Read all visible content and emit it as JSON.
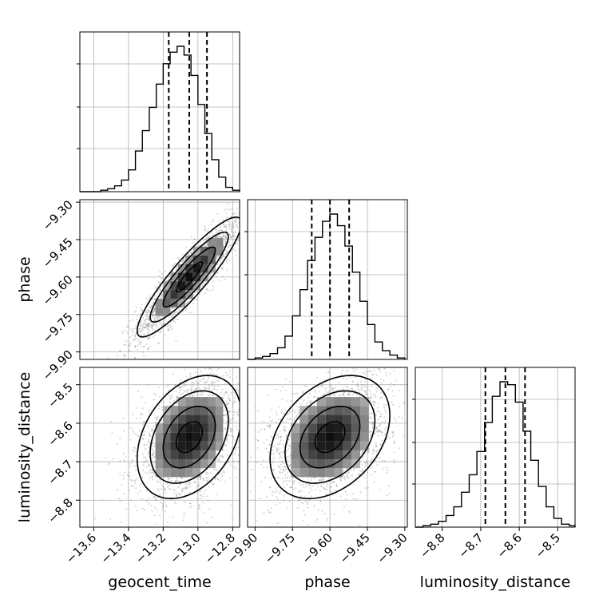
{
  "chart_data": {
    "type": "corner",
    "parameters": [
      {
        "name": "geocent_time",
        "label": "geocent_time",
        "range": [
          -13.68,
          -12.76
        ],
        "ticks": [
          -13.6,
          -13.4,
          -13.2,
          -13.0,
          -12.8
        ],
        "tick_labels": [
          "−13.6",
          "−13.4",
          "−13.2",
          "−13.0",
          "−12.8"
        ],
        "quantiles": [
          -13.168,
          -13.05,
          -12.948
        ],
        "hist_bins": [
          -13.68,
          -13.64,
          -13.6,
          -13.56,
          -13.52,
          -13.48,
          -13.44,
          -13.4,
          -13.36,
          -13.32,
          -13.28,
          -13.24,
          -13.2,
          -13.16,
          -13.12,
          -13.08,
          -13.04,
          -13.0,
          -12.96,
          -12.92,
          -12.88,
          -12.84,
          -12.8,
          -12.76
        ],
        "hist_counts": [
          0,
          0,
          0,
          1,
          2,
          4,
          8,
          15,
          28,
          42,
          58,
          74,
          88,
          96,
          100,
          94,
          80,
          60,
          40,
          22,
          10,
          3,
          1
        ]
      },
      {
        "name": "phase",
        "label": "phase",
        "range": [
          -9.93,
          -9.29
        ],
        "ticks": [
          -9.9,
          -9.75,
          -9.6,
          -9.45,
          -9.3
        ],
        "tick_labels": [
          "−9.90",
          "−9.75",
          "−9.60",
          "−9.45",
          "−9.30"
        ],
        "quantiles": [
          -9.673,
          -9.6,
          -9.523
        ],
        "hist_bins": [
          -9.93,
          -9.9,
          -9.87,
          -9.84,
          -9.81,
          -9.78,
          -9.75,
          -9.72,
          -9.69,
          -9.66,
          -9.63,
          -9.6,
          -9.57,
          -9.54,
          -9.51,
          -9.48,
          -9.45,
          -9.42,
          -9.39,
          -9.36,
          -9.33,
          -9.3
        ],
        "hist_counts": [
          0,
          1,
          2,
          4,
          8,
          16,
          30,
          48,
          68,
          84,
          95,
          100,
          92,
          78,
          60,
          40,
          24,
          12,
          6,
          3,
          1
        ]
      },
      {
        "name": "luminosity_distance",
        "label": "luminosity_distance",
        "range": [
          -8.87,
          -8.455
        ],
        "ticks": [
          -8.8,
          -8.7,
          -8.6,
          -8.5
        ],
        "tick_labels": [
          "−8.8",
          "−8.7",
          "−8.6",
          "−8.5"
        ],
        "quantiles": [
          -8.688,
          -8.636,
          -8.585
        ],
        "hist_bins": [
          -8.87,
          -8.85,
          -8.83,
          -8.81,
          -8.79,
          -8.77,
          -8.75,
          -8.73,
          -8.71,
          -8.69,
          -8.67,
          -8.65,
          -8.63,
          -8.61,
          -8.59,
          -8.57,
          -8.55,
          -8.53,
          -8.51,
          -8.49,
          -8.47,
          -8.455
        ],
        "hist_counts": [
          0,
          1,
          2,
          4,
          8,
          14,
          24,
          36,
          52,
          72,
          90,
          100,
          98,
          86,
          66,
          46,
          28,
          14,
          6,
          2,
          1
        ]
      }
    ],
    "pairs": [
      {
        "x": "geocent_time",
        "y": "phase",
        "correlation": 0.9,
        "center": [
          -13.05,
          -9.6
        ],
        "sd": [
          0.15,
          0.12
        ]
      },
      {
        "x": "geocent_time",
        "y": "luminosity_distance",
        "correlation": 0.35,
        "center": [
          -13.05,
          -8.636
        ],
        "sd": [
          0.15,
          0.08
        ]
      },
      {
        "x": "phase",
        "y": "luminosity_distance",
        "correlation": 0.35,
        "center": [
          -9.6,
          -8.636
        ],
        "sd": [
          0.12,
          0.08
        ]
      }
    ],
    "contour_levels_sigma": [
      0.5,
      1.0,
      1.5,
      2.0
    ],
    "grid": true,
    "colors": {
      "points": "#808080",
      "hist": "#000000",
      "grid": "#b0b0b0"
    }
  }
}
